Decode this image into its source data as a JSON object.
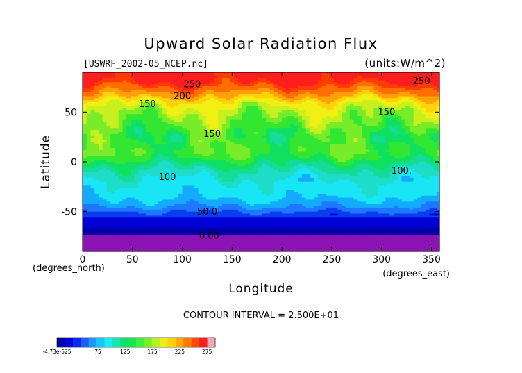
{
  "chart_data": {
    "type": "heatmap",
    "title": "Upward Solar Radiation Flux",
    "subtitle_left": "[USWRF_2002-05_NCEP.nc]",
    "subtitle_right": "(units:W/m^2)",
    "xlabel": "Longitude",
    "ylabel": "Latitude",
    "x_unit_label": "(degrees_east)",
    "y_unit_label": "(degrees_north)",
    "xlim": [
      0,
      358
    ],
    "ylim": [
      -90,
      90
    ],
    "x_ticks": [
      0,
      50,
      100,
      150,
      200,
      250,
      300,
      350
    ],
    "y_ticks": [
      -50,
      0,
      50
    ],
    "contour_interval_text": "CONTOUR INTERVAL = 2.500E+01",
    "contour_labels": [
      {
        "text": "250",
        "lon": 110,
        "lat": 75
      },
      {
        "text": "250",
        "lon": 340,
        "lat": 78
      },
      {
        "text": "200",
        "lon": 100,
        "lat": 63
      },
      {
        "text": "150",
        "lon": 65,
        "lat": 55
      },
      {
        "text": "150",
        "lon": 130,
        "lat": 25
      },
      {
        "text": "150",
        "lon": 305,
        "lat": 47
      },
      {
        "text": "100",
        "lon": 85,
        "lat": -18
      },
      {
        "text": "100.",
        "lon": 320,
        "lat": -12
      },
      {
        "text": "50.0",
        "lon": 125,
        "lat": -53
      },
      {
        "text": "0.00",
        "lon": 127,
        "lat": -77
      }
    ],
    "zonal_profile": {
      "lat": [
        -90,
        -80,
        -75,
        -70,
        -60,
        -55,
        -50,
        -45,
        -40,
        -35,
        -30,
        -25,
        -20,
        -15,
        -10,
        -5,
        0,
        5,
        10,
        15,
        20,
        25,
        30,
        35,
        40,
        45,
        50,
        55,
        60,
        65,
        70,
        75,
        80,
        85,
        90
      ],
      "value": [
        0,
        0,
        10,
        25,
        40,
        55,
        65,
        80,
        88,
        95,
        98,
        100,
        103,
        108,
        115,
        125,
        135,
        145,
        152,
        150,
        148,
        145,
        150,
        155,
        160,
        165,
        170,
        178,
        190,
        210,
        230,
        248,
        265,
        275,
        275
      ]
    },
    "colorbar": {
      "tick_labels": [
        "-4.73e-525",
        "75",
        "125",
        "175",
        "225",
        "275"
      ],
      "tick_values": [
        0,
        75,
        125,
        175,
        225,
        275
      ],
      "range": [
        0,
        290
      ],
      "colors": [
        "#0000a8",
        "#0000d8",
        "#0a28f0",
        "#1e5ff8",
        "#1e96ff",
        "#14c8ff",
        "#19ecec",
        "#14e6b4",
        "#10e070",
        "#14e650",
        "#3cf03c",
        "#78f028",
        "#b8f01e",
        "#e8f014",
        "#ffd20a",
        "#ffaa08",
        "#ff7800",
        "#ff4b00",
        "#ff1e1e",
        "#f0a8b4"
      ]
    },
    "palette_bands": [
      {
        "min": -999,
        "max": 12,
        "color": "#8c14b4"
      },
      {
        "min": 12,
        "max": 30,
        "color": "#0000a8"
      },
      {
        "min": 30,
        "max": 50,
        "color": "#0000d8"
      },
      {
        "min": 50,
        "max": 65,
        "color": "#0a3cf0"
      },
      {
        "min": 65,
        "max": 80,
        "color": "#1e78ff"
      },
      {
        "min": 80,
        "max": 92,
        "color": "#14aaff"
      },
      {
        "min": 92,
        "max": 105,
        "color": "#19e6f5"
      },
      {
        "min": 105,
        "max": 118,
        "color": "#1edcc8"
      },
      {
        "min": 118,
        "max": 130,
        "color": "#14dc96"
      },
      {
        "min": 130,
        "max": 142,
        "color": "#10e060"
      },
      {
        "min": 142,
        "max": 155,
        "color": "#32e632"
      },
      {
        "min": 155,
        "max": 168,
        "color": "#78ec28"
      },
      {
        "min": 168,
        "max": 180,
        "color": "#c8f01e"
      },
      {
        "min": 180,
        "max": 195,
        "color": "#f0f014"
      },
      {
        "min": 195,
        "max": 210,
        "color": "#ffd20a"
      },
      {
        "min": 210,
        "max": 228,
        "color": "#ffa008"
      },
      {
        "min": 228,
        "max": 248,
        "color": "#ff6e00"
      },
      {
        "min": 248,
        "max": 262,
        "color": "#ff3c00"
      },
      {
        "min": 262,
        "max": 9999,
        "color": "#ff1e1e"
      }
    ],
    "grid": false
  }
}
